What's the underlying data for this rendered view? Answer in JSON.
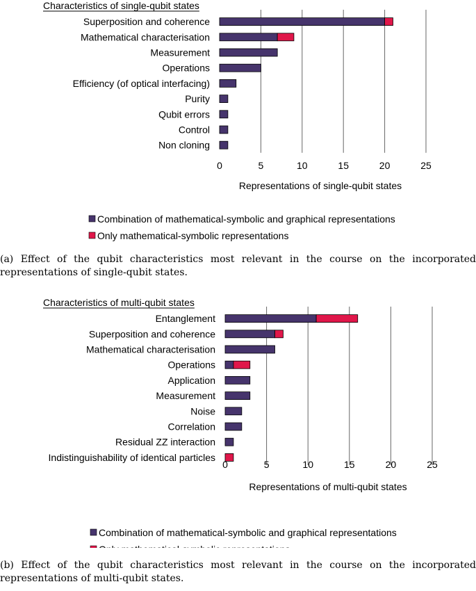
{
  "chart_data": [
    {
      "type": "bar",
      "orientation": "horizontal",
      "stacked": true,
      "title": "Characteristics of single-qubit states",
      "xlabel": "Representations of single-qubit states",
      "xlim": [
        0,
        25
      ],
      "xticks": [
        0,
        5,
        10,
        15,
        20,
        25
      ],
      "grid": true,
      "legend_position": "bottom",
      "categories": [
        "Superposition and coherence",
        "Mathematical characterisation",
        "Measurement",
        "Operations",
        "Efficiency (of optical interfacing)",
        "Purity",
        "Qubit errors",
        "Control",
        "Non cloning"
      ],
      "series": [
        {
          "name": "Combination of mathematical-symbolic and graphical representations",
          "color": "#46346c",
          "values": [
            20,
            7,
            7,
            5,
            2,
            1,
            1,
            1,
            1
          ]
        },
        {
          "name": "Only mathematical-symbolic representations",
          "color": "#e0174a",
          "values": [
            1,
            2,
            0,
            0,
            0,
            0,
            0,
            0,
            0
          ]
        }
      ]
    },
    {
      "type": "bar",
      "orientation": "horizontal",
      "stacked": true,
      "title": "Characteristics of multi-qubit states",
      "xlabel": "Representations of multi-qubit states",
      "xlim": [
        0,
        25
      ],
      "xticks": [
        0,
        5,
        10,
        15,
        20,
        25
      ],
      "grid": true,
      "legend_position": "bottom",
      "categories": [
        "Entanglement",
        "Superposition and coherence",
        "Mathematical characterisation",
        "Operations",
        "Application",
        "Measurement",
        "Noise",
        "Correlation",
        "Residual ZZ interaction",
        "Indistinguishability of identical particles"
      ],
      "series": [
        {
          "name": "Combination of mathematical-symbolic and graphical representations",
          "color": "#46346c",
          "values": [
            11,
            6,
            6,
            1,
            3,
            3,
            2,
            2,
            1,
            0
          ]
        },
        {
          "name": "Only mathematical-symbolic representations",
          "color": "#e0174a",
          "values": [
            5,
            1,
            0,
            2,
            0,
            0,
            0,
            0,
            0,
            1
          ]
        }
      ]
    }
  ],
  "captions": [
    "(a) Effect of the qubit characteristics most relevant in the course on the incorporated representations of single-qubit states.",
    "(b) Effect of the qubit characteristics most relevant in the course on the incorporated representations of multi-qubit states."
  ]
}
